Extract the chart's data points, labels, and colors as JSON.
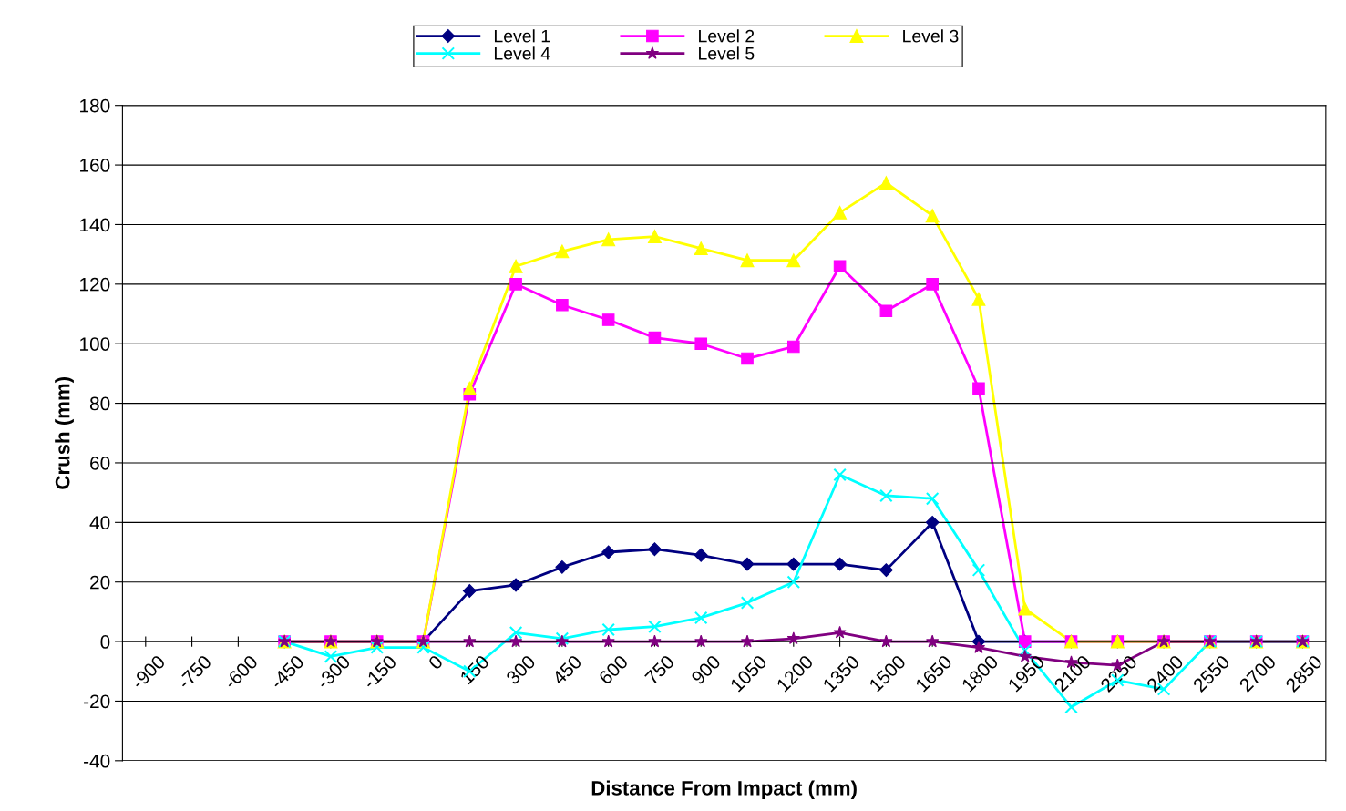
{
  "chart_data": {
    "type": "line",
    "xlabel": "Distance From Impact (mm)",
    "ylabel": "Crush (mm)",
    "categories": [
      "-900",
      "-750",
      "-600",
      "-450",
      "-300",
      "-150",
      "0",
      "150",
      "300",
      "450",
      "600",
      "750",
      "900",
      "1050",
      "1200",
      "1350",
      "1500",
      "1650",
      "1800",
      "1950",
      "2100",
      "2250",
      "2400",
      "2550",
      "2700",
      "2850"
    ],
    "series": [
      {
        "name": "Level 1",
        "color": "#000080",
        "marker": "diamond",
        "values": [
          null,
          null,
          null,
          0,
          0,
          0,
          0,
          17,
          19,
          25,
          30,
          31,
          29,
          26,
          26,
          26,
          24,
          40,
          0,
          0,
          0,
          0,
          0,
          0,
          0,
          0
        ]
      },
      {
        "name": "Level 2",
        "color": "#ff00ff",
        "marker": "square",
        "values": [
          null,
          null,
          null,
          0,
          0,
          0,
          0,
          83,
          120,
          113,
          108,
          102,
          100,
          95,
          99,
          126,
          111,
          120,
          85,
          0,
          0,
          0,
          0,
          0,
          0,
          0
        ]
      },
      {
        "name": "Level 3",
        "color": "#ffff00",
        "marker": "triangle",
        "values": [
          null,
          null,
          null,
          0,
          0,
          0,
          0,
          85,
          126,
          131,
          135,
          136,
          132,
          128,
          128,
          144,
          154,
          143,
          115,
          11,
          0,
          0,
          0,
          0,
          0,
          0
        ]
      },
      {
        "name": "Level 4",
        "color": "#00ffff",
        "marker": "cross",
        "values": [
          null,
          null,
          null,
          0,
          -5,
          -2,
          -2,
          -10,
          3,
          1,
          4,
          5,
          8,
          13,
          20,
          56,
          49,
          48,
          24,
          -3,
          -22,
          -13,
          -16,
          0,
          0,
          0
        ]
      },
      {
        "name": "Level 5",
        "color": "#800080",
        "marker": "star",
        "values": [
          null,
          null,
          null,
          0,
          0,
          0,
          0,
          0,
          0,
          0,
          0,
          0,
          0,
          0,
          1,
          3,
          0,
          0,
          -2,
          -5,
          -7,
          -8,
          0,
          0,
          0,
          0
        ]
      }
    ],
    "ylim": [
      -40,
      180
    ],
    "yticks": [
      -40,
      -20,
      0,
      20,
      40,
      60,
      80,
      100,
      120,
      140,
      160,
      180
    ],
    "grid": "y",
    "legend": "top",
    "line_style": "solid"
  }
}
